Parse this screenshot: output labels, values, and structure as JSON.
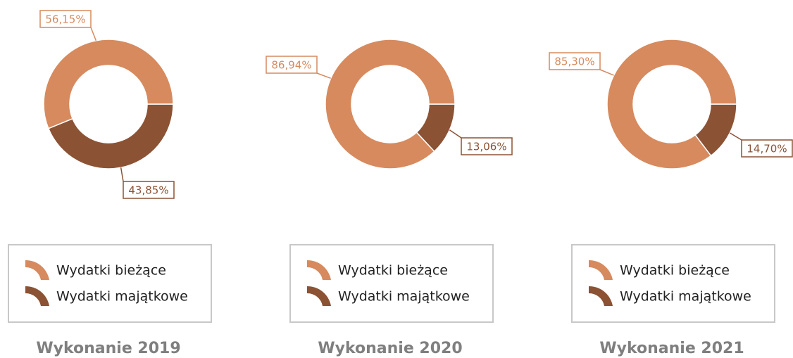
{
  "chart_data": [
    {
      "type": "pie",
      "title": "Wykonanie 2019",
      "categories": [
        "Wydatki bieżące",
        "Wydatki majątkowe"
      ],
      "values": [
        56.15,
        43.85
      ],
      "value_labels": [
        "56,15%",
        "43,85%"
      ],
      "colors": [
        "#d68a5e",
        "#8b5234"
      ],
      "legend": true
    },
    {
      "type": "pie",
      "title": "Wykonanie 2020",
      "categories": [
        "Wydatki bieżące",
        "Wydatki majątkowe"
      ],
      "values": [
        86.94,
        13.06
      ],
      "value_labels": [
        "86,94%",
        "13,06%"
      ],
      "colors": [
        "#d68a5e",
        "#8b5234"
      ],
      "legend": true
    },
    {
      "type": "pie",
      "title": "Wykonanie 2021",
      "categories": [
        "Wydatki bieżące",
        "Wydatki majątkowe"
      ],
      "values": [
        85.3,
        14.7
      ],
      "value_labels": [
        "85,30%",
        "14,70%"
      ],
      "colors": [
        "#d68a5e",
        "#8b5234"
      ],
      "legend": true
    }
  ]
}
